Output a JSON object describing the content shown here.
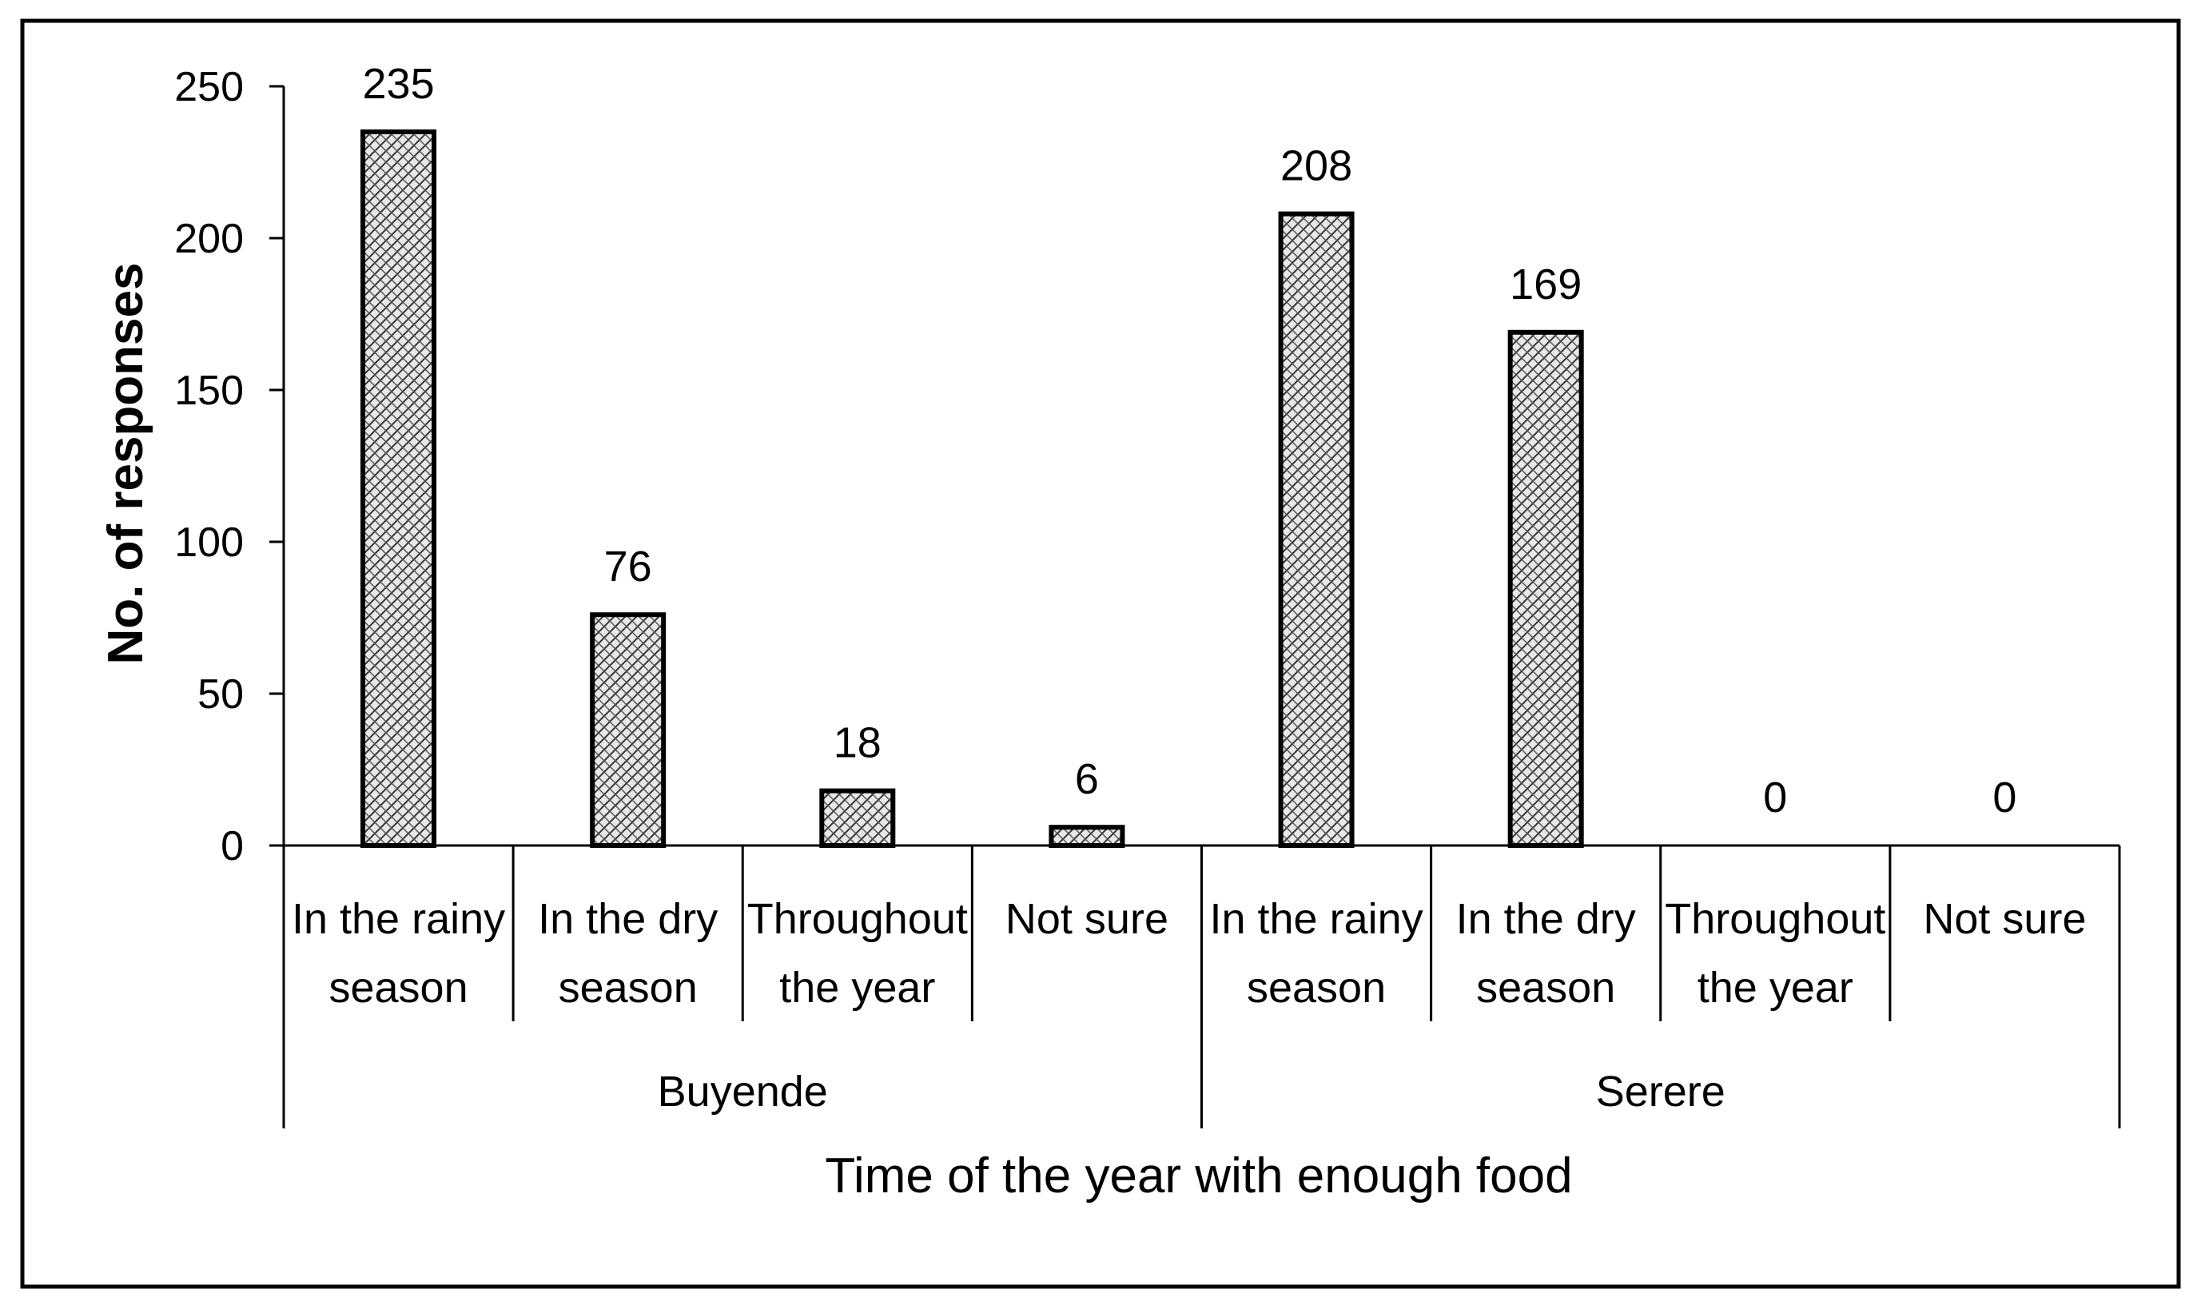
{
  "chart_data": {
    "type": "bar",
    "xlabel": "Time  of the year with enough food",
    "ylabel": "No. of responses",
    "ylim": [
      0,
      250
    ],
    "yticks": [
      0,
      50,
      100,
      150,
      200,
      250
    ],
    "grid": false,
    "legend": "none",
    "pattern": "crosshatch",
    "groups": [
      {
        "name": "Buyende",
        "categories": [
          [
            "In the rainy",
            "season"
          ],
          [
            "In the dry",
            "season"
          ],
          [
            "Throughout",
            "the year"
          ],
          [
            "Not sure"
          ]
        ],
        "values": [
          235,
          76,
          18,
          6
        ]
      },
      {
        "name": "Serere",
        "categories": [
          [
            "In the rainy",
            "season"
          ],
          [
            "In the dry",
            "season"
          ],
          [
            "Throughout",
            "the year"
          ],
          [
            "Not sure"
          ]
        ],
        "values": [
          208,
          169,
          0,
          0
        ]
      }
    ],
    "colors": {
      "bar_fill": "#e8e8e8",
      "bar_stroke": "#000000",
      "hatch": "#333333"
    }
  }
}
